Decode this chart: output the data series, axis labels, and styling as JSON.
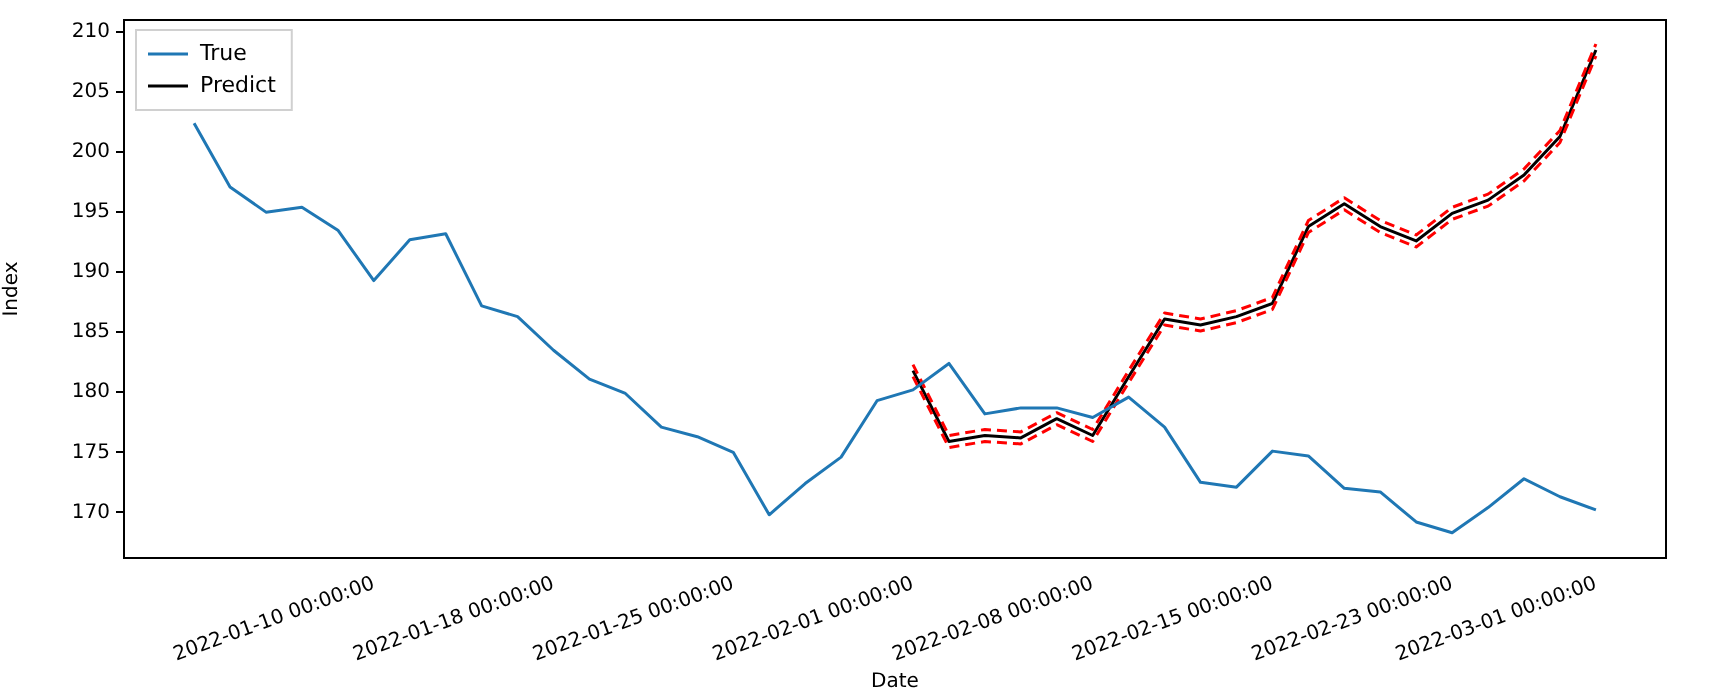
{
  "chart_data": {
    "type": "line",
    "xlabel": "Date",
    "ylabel": "Index",
    "categories": [
      null,
      null,
      null,
      null,
      null,
      "2022-01-10 00:00:00",
      null,
      null,
      null,
      null,
      "2022-01-18 00:00:00",
      null,
      null,
      null,
      null,
      "2022-01-25 00:00:00",
      null,
      null,
      null,
      null,
      "2022-02-01 00:00:00",
      null,
      null,
      null,
      null,
      "2022-02-08 00:00:00",
      null,
      null,
      null,
      null,
      "2022-02-15 00:00:00",
      null,
      null,
      null,
      null,
      "2022-02-23 00:00:00",
      null,
      null,
      null,
      "2022-03-01 00:00:00"
    ],
    "series": [
      {
        "name": "True",
        "color": "#1f77b4",
        "values": [
          202.4,
          197.1,
          195.0,
          195.4,
          193.5,
          189.3,
          192.7,
          193.2,
          187.2,
          186.3,
          183.5,
          181.1,
          179.9,
          177.1,
          176.3,
          175.0,
          169.8,
          172.4,
          174.6,
          179.3,
          180.2,
          182.4,
          178.2,
          178.7,
          178.7,
          177.9,
          179.6,
          177.1,
          172.5,
          172.1,
          175.1,
          174.7,
          172.0,
          171.7,
          169.2,
          168.3,
          170.4,
          172.8,
          171.3,
          170.2
        ]
      },
      {
        "color": "#ff0000",
        "line_style": "dashed",
        "values": [
          null,
          null,
          null,
          null,
          null,
          null,
          null,
          null,
          null,
          null,
          null,
          null,
          null,
          null,
          null,
          null,
          null,
          null,
          null,
          null,
          182.3,
          176.4,
          176.9,
          176.7,
          178.3,
          176.9,
          181.8,
          186.6,
          186.1,
          186.8,
          187.9,
          194.3,
          196.2,
          194.3,
          193.1,
          195.4,
          196.5,
          198.6,
          201.8,
          209.0
        ]
      },
      {
        "color": "#ff0000",
        "line_style": "dashed",
        "values": [
          null,
          null,
          null,
          null,
          null,
          null,
          null,
          null,
          null,
          null,
          null,
          null,
          null,
          null,
          null,
          null,
          null,
          null,
          null,
          null,
          181.3,
          175.4,
          175.9,
          175.7,
          177.3,
          175.9,
          180.8,
          185.6,
          185.1,
          185.8,
          186.9,
          193.3,
          195.2,
          193.3,
          192.1,
          194.4,
          195.5,
          197.6,
          200.8,
          208.0
        ]
      },
      {
        "name": "Predict",
        "color": "#000000",
        "values": [
          null,
          null,
          null,
          null,
          null,
          null,
          null,
          null,
          null,
          null,
          null,
          null,
          null,
          null,
          null,
          null,
          null,
          null,
          null,
          null,
          181.8,
          175.9,
          176.4,
          176.2,
          177.8,
          176.4,
          181.3,
          186.1,
          185.6,
          186.3,
          187.4,
          193.8,
          195.7,
          193.8,
          192.6,
          194.9,
          196.0,
          198.1,
          201.3,
          208.5
        ]
      }
    ],
    "ylim": [
      166.2,
      211
    ],
    "yticks": [
      170,
      175,
      180,
      185,
      190,
      195,
      200,
      205,
      210
    ],
    "legend": "top left",
    "line_style": "solid"
  }
}
